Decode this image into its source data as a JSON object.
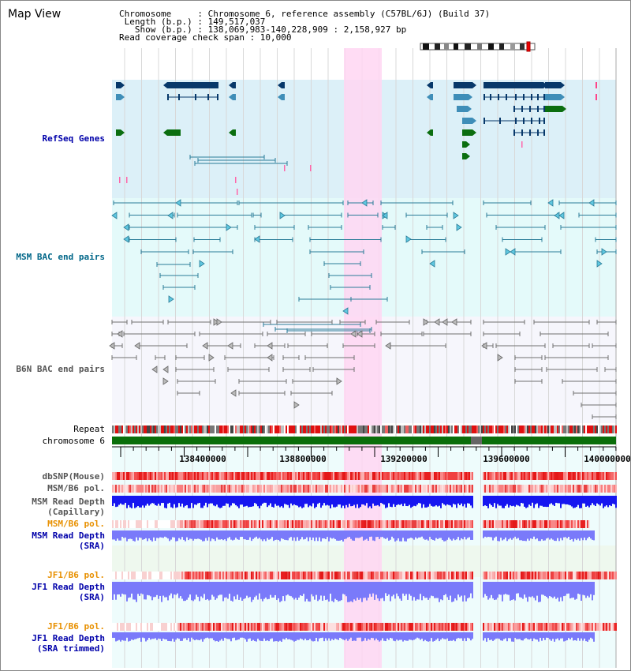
{
  "title": "Map View",
  "info": {
    "chromosome": "Chromosome     : Chromosome 6, reference assembly (C57BL/6J) (Build 37)",
    "length": " Length (b.p.) : 149,517,037",
    "show": "   Show (b.p.) : 138,069,983-140,228,909 : 2,158,927 bp",
    "coverage": "Read coverage check span : 10,000"
  },
  "tracks": {
    "refseq": "RefSeq Genes",
    "msm_bac": "MSM BAC end pairs",
    "b6n_bac": "B6N BAC end pairs",
    "repeat": "Repeat",
    "chromosome": "chromosome 6",
    "dbsnp": "dbSNP(Mouse)",
    "msm_b6_pol_1": "MSM/B6 pol.",
    "msm_depth_cap_1": "MSM Read Depth",
    "msm_depth_cap_2": "(Capillary)",
    "msm_b6_pol_2": "MSM/B6 pol.",
    "msm_depth_sra_1": "MSM Read Depth",
    "msm_depth_sra_2": "(SRA)",
    "jf1_pol_1": "JF1/B6 pol.",
    "jf1_depth_sra_1": "JF1 Read Depth",
    "jf1_depth_sra_2": "(SRA)",
    "jf1_pol_2": "JF1/B6 pol.",
    "jf1_depth_trim_1": "JF1 Read Depth",
    "jf1_depth_trim_2": "(SRA trimmed)"
  },
  "axis": {
    "ticks": [
      "138400000",
      "138800000",
      "139200000",
      "139600000",
      "140000000"
    ]
  },
  "colors": {
    "refseq_bg": "#dcf0f8",
    "msm_bg": "#e4fafa",
    "b6n_bg": "#f6f6fc",
    "highlight": "#ffd6f2",
    "refseq_dark": "#07386a",
    "refseq_mid": "#3f8eb8",
    "refseq_green": "#0b6e10",
    "bac_msm": "#2a7c98",
    "bac_b6n": "#707070",
    "chrom_green": "#0a6e0a",
    "depth_blue": "#1616f0",
    "depth_light": "#7a7afa",
    "pol_red": "#e41818",
    "label_blue": "#0000aa",
    "label_teal": "#006688",
    "label_orange": "#e89000"
  }
}
